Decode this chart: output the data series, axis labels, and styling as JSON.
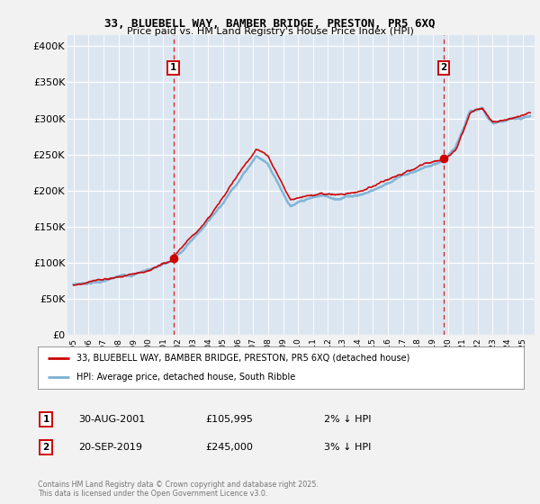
{
  "title_line1": "33, BLUEBELL WAY, BAMBER BRIDGE, PRESTON, PR5 6XQ",
  "title_line2": "Price paid vs. HM Land Registry's House Price Index (HPI)",
  "ylabel_ticks": [
    "£0",
    "£50K",
    "£100K",
    "£150K",
    "£200K",
    "£250K",
    "£300K",
    "£350K",
    "£400K"
  ],
  "ytick_values": [
    0,
    50000,
    100000,
    150000,
    200000,
    250000,
    300000,
    350000,
    400000
  ],
  "ylim": [
    0,
    415000
  ],
  "xlim_start": 1994.6,
  "xlim_end": 2025.8,
  "background_color": "#dce6f1",
  "fig_color": "#f2f2f2",
  "grid_color": "#ffffff",
  "red_line_color": "#cc0000",
  "blue_line_color": "#7ab0d4",
  "sale1_x": 2001.664,
  "sale1_y": 105995,
  "sale2_x": 2019.72,
  "sale2_y": 245000,
  "legend_label1": "33, BLUEBELL WAY, BAMBER BRIDGE, PRESTON, PR5 6XQ (detached house)",
  "legend_label2": "HPI: Average price, detached house, South Ribble",
  "annotation1_label": "1",
  "annotation1_date": "30-AUG-2001",
  "annotation1_price": "£105,995",
  "annotation1_hpi": "2% ↓ HPI",
  "annotation2_label": "2",
  "annotation2_date": "20-SEP-2019",
  "annotation2_price": "£245,000",
  "annotation2_hpi": "3% ↓ HPI",
  "copyright_text": "Contains HM Land Registry data © Crown copyright and database right 2025.\nThis data is licensed under the Open Government Licence v3.0."
}
